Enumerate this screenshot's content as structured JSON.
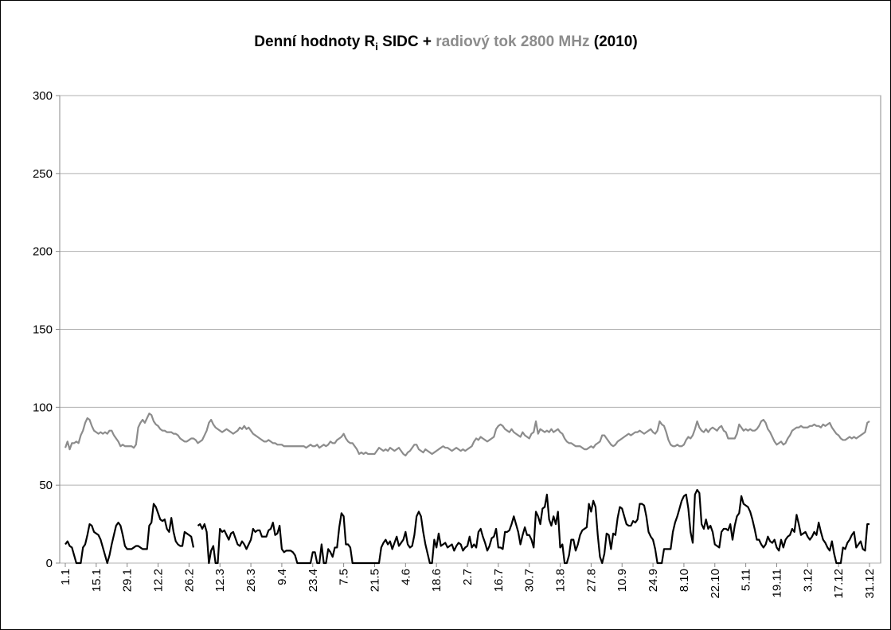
{
  "chart_data": {
    "type": "line",
    "title": [
      "Denní hodnoty R",
      "i",
      " SIDC + ",
      "radiový tok 2800 MHz",
      " (2010)"
    ],
    "title_colors": [
      "#000000",
      "#000000",
      "#000000",
      "#8c8c8c",
      "#000000"
    ],
    "categories": [
      "1.1",
      null,
      null,
      null,
      null,
      null,
      null,
      null,
      null,
      null,
      null,
      null,
      null,
      null,
      "15.1",
      null,
      null,
      null,
      null,
      null,
      null,
      null,
      null,
      null,
      null,
      null,
      null,
      null,
      "29.1",
      null,
      null,
      null,
      null,
      null,
      null,
      null,
      null,
      null,
      null,
      null,
      null,
      null,
      "12.2",
      null,
      null,
      null,
      null,
      null,
      null,
      null,
      null,
      null,
      null,
      null,
      null,
      null,
      "26.2",
      null,
      null,
      null,
      null,
      null,
      null,
      null,
      null,
      null,
      null,
      null,
      null,
      null,
      "12.3",
      null,
      null,
      null,
      null,
      null,
      null,
      null,
      null,
      null,
      null,
      null,
      null,
      null,
      "26.3",
      null,
      null,
      null,
      null,
      null,
      null,
      null,
      null,
      null,
      null,
      null,
      null,
      null,
      "9.4",
      null,
      null,
      null,
      null,
      null,
      null,
      null,
      null,
      null,
      null,
      null,
      null,
      null,
      "23.4",
      null,
      null,
      null,
      null,
      null,
      null,
      null,
      null,
      null,
      null,
      null,
      null,
      null,
      "7.5",
      null,
      null,
      null,
      null,
      null,
      null,
      null,
      null,
      null,
      null,
      null,
      null,
      null,
      "21.5",
      null,
      null,
      null,
      null,
      null,
      null,
      null,
      null,
      null,
      null,
      null,
      null,
      null,
      "4.6",
      null,
      null,
      null,
      null,
      null,
      null,
      null,
      null,
      null,
      null,
      null,
      null,
      null,
      "18.6",
      null,
      null,
      null,
      null,
      null,
      null,
      null,
      null,
      null,
      null,
      null,
      null,
      null,
      "2.7",
      null,
      null,
      null,
      null,
      null,
      null,
      null,
      null,
      null,
      null,
      null,
      null,
      null,
      "16.7",
      null,
      null,
      null,
      null,
      null,
      null,
      null,
      null,
      null,
      null,
      null,
      null,
      null,
      "30.7",
      null,
      null,
      null,
      null,
      null,
      null,
      null,
      null,
      null,
      null,
      null,
      null,
      null,
      "13.8",
      null,
      null,
      null,
      null,
      null,
      null,
      null,
      null,
      null,
      null,
      null,
      null,
      null,
      "27.8",
      null,
      null,
      null,
      null,
      null,
      null,
      null,
      null,
      null,
      null,
      null,
      null,
      null,
      "10.9",
      null,
      null,
      null,
      null,
      null,
      null,
      null,
      null,
      null,
      null,
      null,
      null,
      null,
      "24.9",
      null,
      null,
      null,
      null,
      null,
      null,
      null,
      null,
      null,
      null,
      null,
      null,
      null,
      "8.10",
      null,
      null,
      null,
      null,
      null,
      null,
      null,
      null,
      null,
      null,
      null,
      null,
      null,
      "22.10",
      null,
      null,
      null,
      null,
      null,
      null,
      null,
      null,
      null,
      null,
      null,
      null,
      null,
      "5.11",
      null,
      null,
      null,
      null,
      null,
      null,
      null,
      null,
      null,
      null,
      null,
      null,
      null,
      "19.11",
      null,
      null,
      null,
      null,
      null,
      null,
      null,
      null,
      null,
      null,
      null,
      null,
      null,
      "3.12",
      null,
      null,
      null,
      null,
      null,
      null,
      null,
      null,
      null,
      null,
      null,
      null,
      null,
      "17.12",
      null,
      null,
      null,
      null,
      null,
      null,
      null,
      null,
      null,
      null,
      null,
      null,
      null,
      "31.12"
    ],
    "series": [
      {
        "color": "#8c8c8c",
        "values": [
          74,
          78,
          73,
          77,
          77,
          78,
          77,
          82,
          85,
          90,
          93,
          92,
          88,
          85,
          84,
          83,
          84,
          83,
          84,
          83,
          85,
          85,
          82,
          80,
          78,
          75,
          76,
          75,
          75,
          75,
          75,
          74,
          76,
          87,
          90,
          92,
          90,
          93,
          96,
          95,
          91,
          89,
          88,
          86,
          85,
          85,
          84,
          84,
          84,
          83,
          83,
          82,
          80,
          79,
          78,
          78,
          79,
          80,
          80,
          79,
          77,
          78,
          79,
          82,
          85,
          90,
          92,
          89,
          87,
          86,
          85,
          84,
          85,
          86,
          85,
          84,
          83,
          84,
          85,
          87,
          86,
          88,
          86,
          87,
          85,
          83,
          82,
          81,
          80,
          79,
          78,
          78,
          79,
          78,
          77,
          77,
          76,
          76,
          76,
          75,
          75,
          75,
          75,
          75,
          75,
          75,
          75,
          75,
          75,
          74,
          75,
          76,
          75,
          75,
          76,
          74,
          75,
          76,
          75,
          76,
          78,
          77,
          77,
          79,
          80,
          81,
          83,
          80,
          78,
          77,
          77,
          75,
          73,
          70,
          71,
          70,
          71,
          70,
          70,
          70,
          70,
          72,
          74,
          73,
          72,
          73,
          72,
          74,
          73,
          72,
          73,
          74,
          72,
          70,
          69,
          71,
          72,
          74,
          76,
          76,
          73,
          72,
          71,
          73,
          72,
          71,
          70,
          71,
          72,
          73,
          74,
          75,
          74,
          74,
          73,
          72,
          73,
          74,
          73,
          72,
          73,
          72,
          73,
          74,
          75,
          78,
          80,
          79,
          81,
          80,
          79,
          78,
          79,
          80,
          81,
          86,
          88,
          89,
          88,
          86,
          85,
          84,
          86,
          84,
          83,
          82,
          81,
          84,
          82,
          81,
          80,
          83,
          84,
          91,
          83,
          86,
          85,
          84,
          85,
          84,
          86,
          84,
          85,
          86,
          84,
          83,
          80,
          78,
          77,
          77,
          76,
          75,
          75,
          75,
          74,
          73,
          73,
          74,
          75,
          74,
          76,
          77,
          78,
          82,
          82,
          80,
          78,
          76,
          75,
          76,
          78,
          79,
          80,
          81,
          82,
          83,
          82,
          83,
          84,
          84,
          85,
          84,
          83,
          84,
          85,
          86,
          84,
          83,
          85,
          91,
          89,
          88,
          84,
          79,
          76,
          75,
          75,
          76,
          75,
          75,
          76,
          79,
          81,
          80,
          82,
          86,
          91,
          87,
          85,
          84,
          86,
          84,
          86,
          87,
          86,
          85,
          87,
          88,
          85,
          84,
          80,
          80,
          80,
          80,
          83,
          89,
          87,
          85,
          86,
          85,
          86,
          85,
          85,
          86,
          88,
          91,
          92,
          90,
          86,
          84,
          81,
          78,
          76,
          77,
          78,
          76,
          77,
          80,
          82,
          85,
          86,
          87,
          87,
          88,
          87,
          87,
          87,
          88,
          88,
          89,
          88,
          88,
          87,
          89,
          88,
          89,
          90,
          87,
          85,
          83,
          82,
          80,
          79,
          79,
          80,
          81,
          80,
          81,
          80,
          81,
          82,
          83,
          84,
          90,
          91
        ]
      },
      {
        "color": "#000000",
        "values": [
          12,
          14,
          11,
          10,
          5,
          0,
          0,
          0,
          10,
          12,
          18,
          25,
          24,
          20,
          19,
          18,
          15,
          10,
          5,
          0,
          5,
          12,
          18,
          24,
          26,
          24,
          18,
          11,
          9,
          9,
          9,
          10,
          11,
          11,
          10,
          9,
          9,
          9,
          24,
          26,
          38,
          36,
          32,
          28,
          27,
          28,
          22,
          20,
          29,
          20,
          14,
          12,
          11,
          11,
          20,
          19,
          18,
          17,
          10,
          null,
          24,
          25,
          22,
          25,
          20,
          0,
          8,
          11,
          0,
          0,
          22,
          20,
          21,
          18,
          15,
          19,
          20,
          16,
          12,
          11,
          14,
          12,
          9,
          12,
          15,
          22,
          20,
          21,
          21,
          17,
          17,
          17,
          21,
          22,
          26,
          18,
          19,
          24,
          9,
          7,
          8,
          8,
          8,
          7,
          5,
          0,
          0,
          0,
          0,
          0,
          0,
          0,
          7,
          7,
          0,
          0,
          12,
          0,
          0,
          9,
          7,
          4,
          10,
          10,
          23,
          32,
          30,
          12,
          12,
          10,
          0,
          0,
          0,
          0,
          0,
          0,
          0,
          0,
          0,
          0,
          0,
          0,
          0,
          10,
          13,
          15,
          12,
          14,
          9,
          13,
          17,
          11,
          13,
          15,
          20,
          12,
          10,
          11,
          18,
          30,
          33,
          30,
          20,
          12,
          6,
          0,
          0,
          15,
          10,
          19,
          11,
          12,
          13,
          10,
          11,
          12,
          8,
          11,
          13,
          12,
          8,
          10,
          11,
          17,
          10,
          12,
          10,
          20,
          22,
          17,
          13,
          8,
          11,
          16,
          17,
          22,
          10,
          10,
          9,
          20,
          20,
          21,
          25,
          30,
          25,
          20,
          12,
          18,
          23,
          18,
          18,
          15,
          10,
          33,
          30,
          25,
          35,
          36,
          44,
          28,
          24,
          30,
          25,
          33,
          10,
          12,
          0,
          0,
          5,
          15,
          15,
          8,
          12,
          18,
          21,
          22,
          23,
          38,
          33,
          40,
          36,
          18,
          4,
          0,
          6,
          19,
          18,
          9,
          19,
          18,
          29,
          36,
          35,
          30,
          25,
          24,
          24,
          27,
          26,
          28,
          38,
          38,
          37,
          30,
          20,
          17,
          15,
          9,
          0,
          0,
          0,
          9,
          9,
          9,
          9,
          20,
          26,
          30,
          35,
          40,
          43,
          44,
          35,
          20,
          13,
          44,
          47,
          45,
          25,
          22,
          28,
          22,
          24,
          20,
          12,
          11,
          10,
          20,
          22,
          22,
          21,
          25,
          15,
          24,
          30,
          32,
          43,
          38,
          37,
          36,
          33,
          28,
          22,
          15,
          15,
          12,
          10,
          12,
          17,
          14,
          13,
          15,
          10,
          8,
          15,
          10,
          15,
          17,
          18,
          22,
          20,
          31,
          25,
          18,
          19,
          20,
          17,
          15,
          17,
          20,
          18,
          26,
          20,
          15,
          13,
          10,
          8,
          14,
          6,
          0,
          0,
          0,
          10,
          9,
          13,
          15,
          18,
          20,
          10,
          12,
          14,
          9,
          8,
          25,
          25
        ]
      }
    ],
    "ylim": [
      0,
      300
    ],
    "yticks": [
      0,
      50,
      100,
      150,
      200,
      250,
      300
    ],
    "grid": true
  }
}
